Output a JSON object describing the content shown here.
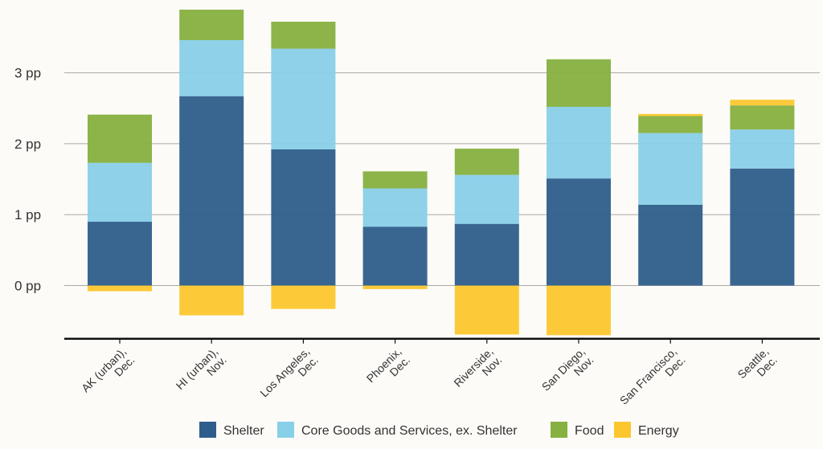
{
  "chart_data": {
    "type": "bar",
    "stacked": true,
    "title": "",
    "xlabel": "",
    "ylabel": "",
    "categories": [
      [
        "AK (urban),",
        "Dec."
      ],
      [
        "HI (urban),",
        "Nov."
      ],
      [
        "Los Angeles,",
        "Dec."
      ],
      [
        "Phoenix,",
        "Dec."
      ],
      [
        "Riverside,",
        "Nov."
      ],
      [
        "San Diego,",
        "Nov."
      ],
      [
        "San Francisco,",
        "Dec."
      ],
      [
        "Seattle,",
        "Dec."
      ]
    ],
    "series": [
      {
        "name": "Shelter",
        "color": "#2e5e8b",
        "values": [
          0.9,
          2.67,
          1.92,
          0.83,
          0.87,
          1.51,
          1.14,
          1.65
        ]
      },
      {
        "name": "Core Goods and Services, ex. Shelter",
        "color": "#88cfe8",
        "values": [
          0.83,
          0.79,
          1.42,
          0.54,
          0.69,
          1.01,
          1.01,
          0.55
        ]
      },
      {
        "name": "Food",
        "color": "#86b03f",
        "values": [
          0.68,
          0.43,
          0.38,
          0.24,
          0.37,
          0.67,
          0.24,
          0.34
        ]
      },
      {
        "name": "Energy",
        "color": "#fcc72e",
        "values": [
          -0.08,
          -0.42,
          -0.33,
          -0.05,
          -0.69,
          -0.7,
          0.03,
          0.08
        ]
      }
    ],
    "yticks": [
      0,
      1,
      2,
      3
    ],
    "ytick_labels": [
      "0 pp",
      "1 pp",
      "2 pp",
      "3 pp"
    ],
    "ylim": [
      -0.75,
      3.9
    ],
    "grid": true,
    "legend_position": "bottom"
  }
}
